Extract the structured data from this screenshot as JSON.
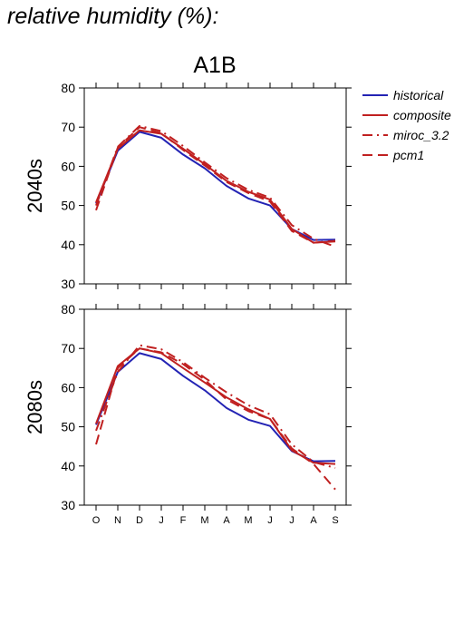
{
  "page_title": "relative humidity (%):",
  "chart_data": {
    "type": "line",
    "title": "A1B",
    "categories": [
      "O",
      "N",
      "D",
      "J",
      "F",
      "M",
      "A",
      "M",
      "J",
      "J",
      "A",
      "S"
    ],
    "ylim": [
      30,
      80
    ],
    "yticks": [
      30,
      40,
      50,
      60,
      70,
      80
    ],
    "legend_position": "right",
    "legend": [
      {
        "key": "historical",
        "name": "historical",
        "color": "#2323b4",
        "dash": "solid"
      },
      {
        "key": "composite",
        "name": "composite",
        "color": "#c02020",
        "dash": "solid"
      },
      {
        "key": "miroc",
        "name": "miroc_3.2",
        "color": "#c02020",
        "dash": "dashdot"
      },
      {
        "key": "pcm1",
        "name": "pcm1",
        "color": "#c02020",
        "dash": "dashed"
      }
    ],
    "panels": [
      {
        "label": "2040s",
        "series": [
          {
            "key": "historical",
            "values": [
              50.5,
              64.0,
              68.8,
              67.3,
              63.0,
              59.5,
              55.0,
              51.8,
              50.0,
              44.0,
              41.2,
              41.3
            ]
          },
          {
            "key": "composite",
            "values": [
              50.8,
              64.5,
              69.2,
              68.3,
              64.5,
              60.5,
              56.3,
              53.5,
              51.5,
              44.0,
              40.5,
              40.8
            ]
          },
          {
            "key": "miroc",
            "values": [
              50.0,
              65.0,
              70.3,
              69.0,
              65.2,
              61.0,
              57.0,
              54.0,
              52.0,
              45.0,
              41.5,
              39.5
            ]
          },
          {
            "key": "pcm1",
            "values": [
              48.8,
              64.8,
              70.0,
              68.5,
              64.2,
              60.2,
              56.0,
              53.2,
              51.0,
              43.5,
              40.5,
              41.0
            ]
          }
        ]
      },
      {
        "label": "2080s",
        "series": [
          {
            "key": "historical",
            "values": [
              50.5,
              64.0,
              68.8,
              67.3,
              63.0,
              59.3,
              54.8,
              51.8,
              50.2,
              43.8,
              41.2,
              41.3
            ]
          },
          {
            "key": "composite",
            "values": [
              50.8,
              65.5,
              70.0,
              68.8,
              65.0,
              61.3,
              57.5,
              54.5,
              52.0,
              44.0,
              40.8,
              40.5
            ]
          },
          {
            "key": "miroc",
            "values": [
              49.0,
              64.0,
              70.8,
              69.8,
              66.5,
              62.5,
              58.8,
              55.5,
              53.2,
              45.5,
              41.0,
              39.5
            ]
          },
          {
            "key": "pcm1",
            "values": [
              45.5,
              65.0,
              70.0,
              69.0,
              66.0,
              62.0,
              57.0,
              54.0,
              52.0,
              44.5,
              40.5,
              34.0
            ]
          }
        ]
      }
    ]
  }
}
